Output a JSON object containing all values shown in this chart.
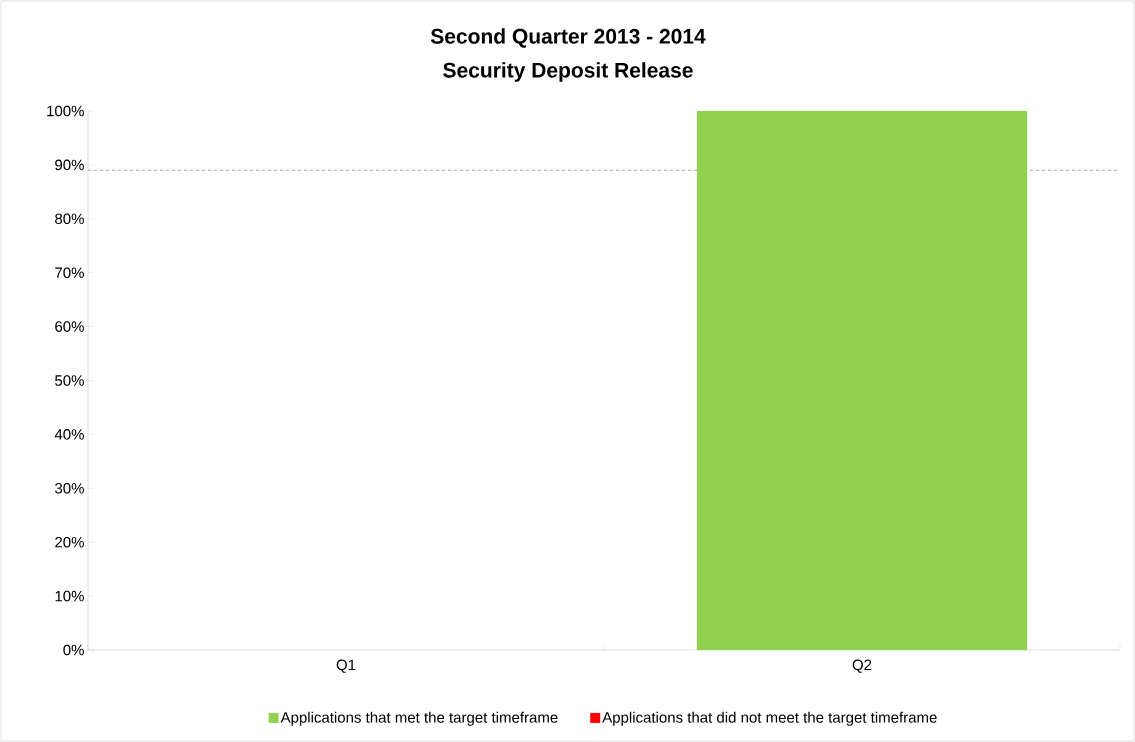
{
  "chart_data": {
    "type": "bar",
    "stacked": true,
    "title": "Second Quarter 2013 - 2014",
    "subtitle": "Security Deposit Release",
    "categories": [
      "Q1",
      "Q2"
    ],
    "series": [
      {
        "name": "Applications that met the target timeframe",
        "color": "#92d050",
        "values": [
          null,
          100
        ]
      },
      {
        "name": "Applications that did not meet the target timeframe",
        "color": "#ff0000",
        "values": [
          null,
          0
        ]
      }
    ],
    "ylim": [
      0,
      100
    ],
    "yticks": [
      {
        "value": 0,
        "label": "0%"
      },
      {
        "value": 10,
        "label": "10%"
      },
      {
        "value": 20,
        "label": "20%"
      },
      {
        "value": 30,
        "label": "30%"
      },
      {
        "value": 40,
        "label": "40%"
      },
      {
        "value": 50,
        "label": "50%"
      },
      {
        "value": 60,
        "label": "60%"
      },
      {
        "value": 70,
        "label": "70%"
      },
      {
        "value": 80,
        "label": "80%"
      },
      {
        "value": 90,
        "label": "90%"
      },
      {
        "value": 100,
        "label": "100%"
      }
    ],
    "ref_lines": [
      {
        "axis": "y",
        "value": 89,
        "color": "#a6a6a6",
        "line_style": "dashed"
      }
    ],
    "grid": false,
    "legend": "bottom"
  }
}
